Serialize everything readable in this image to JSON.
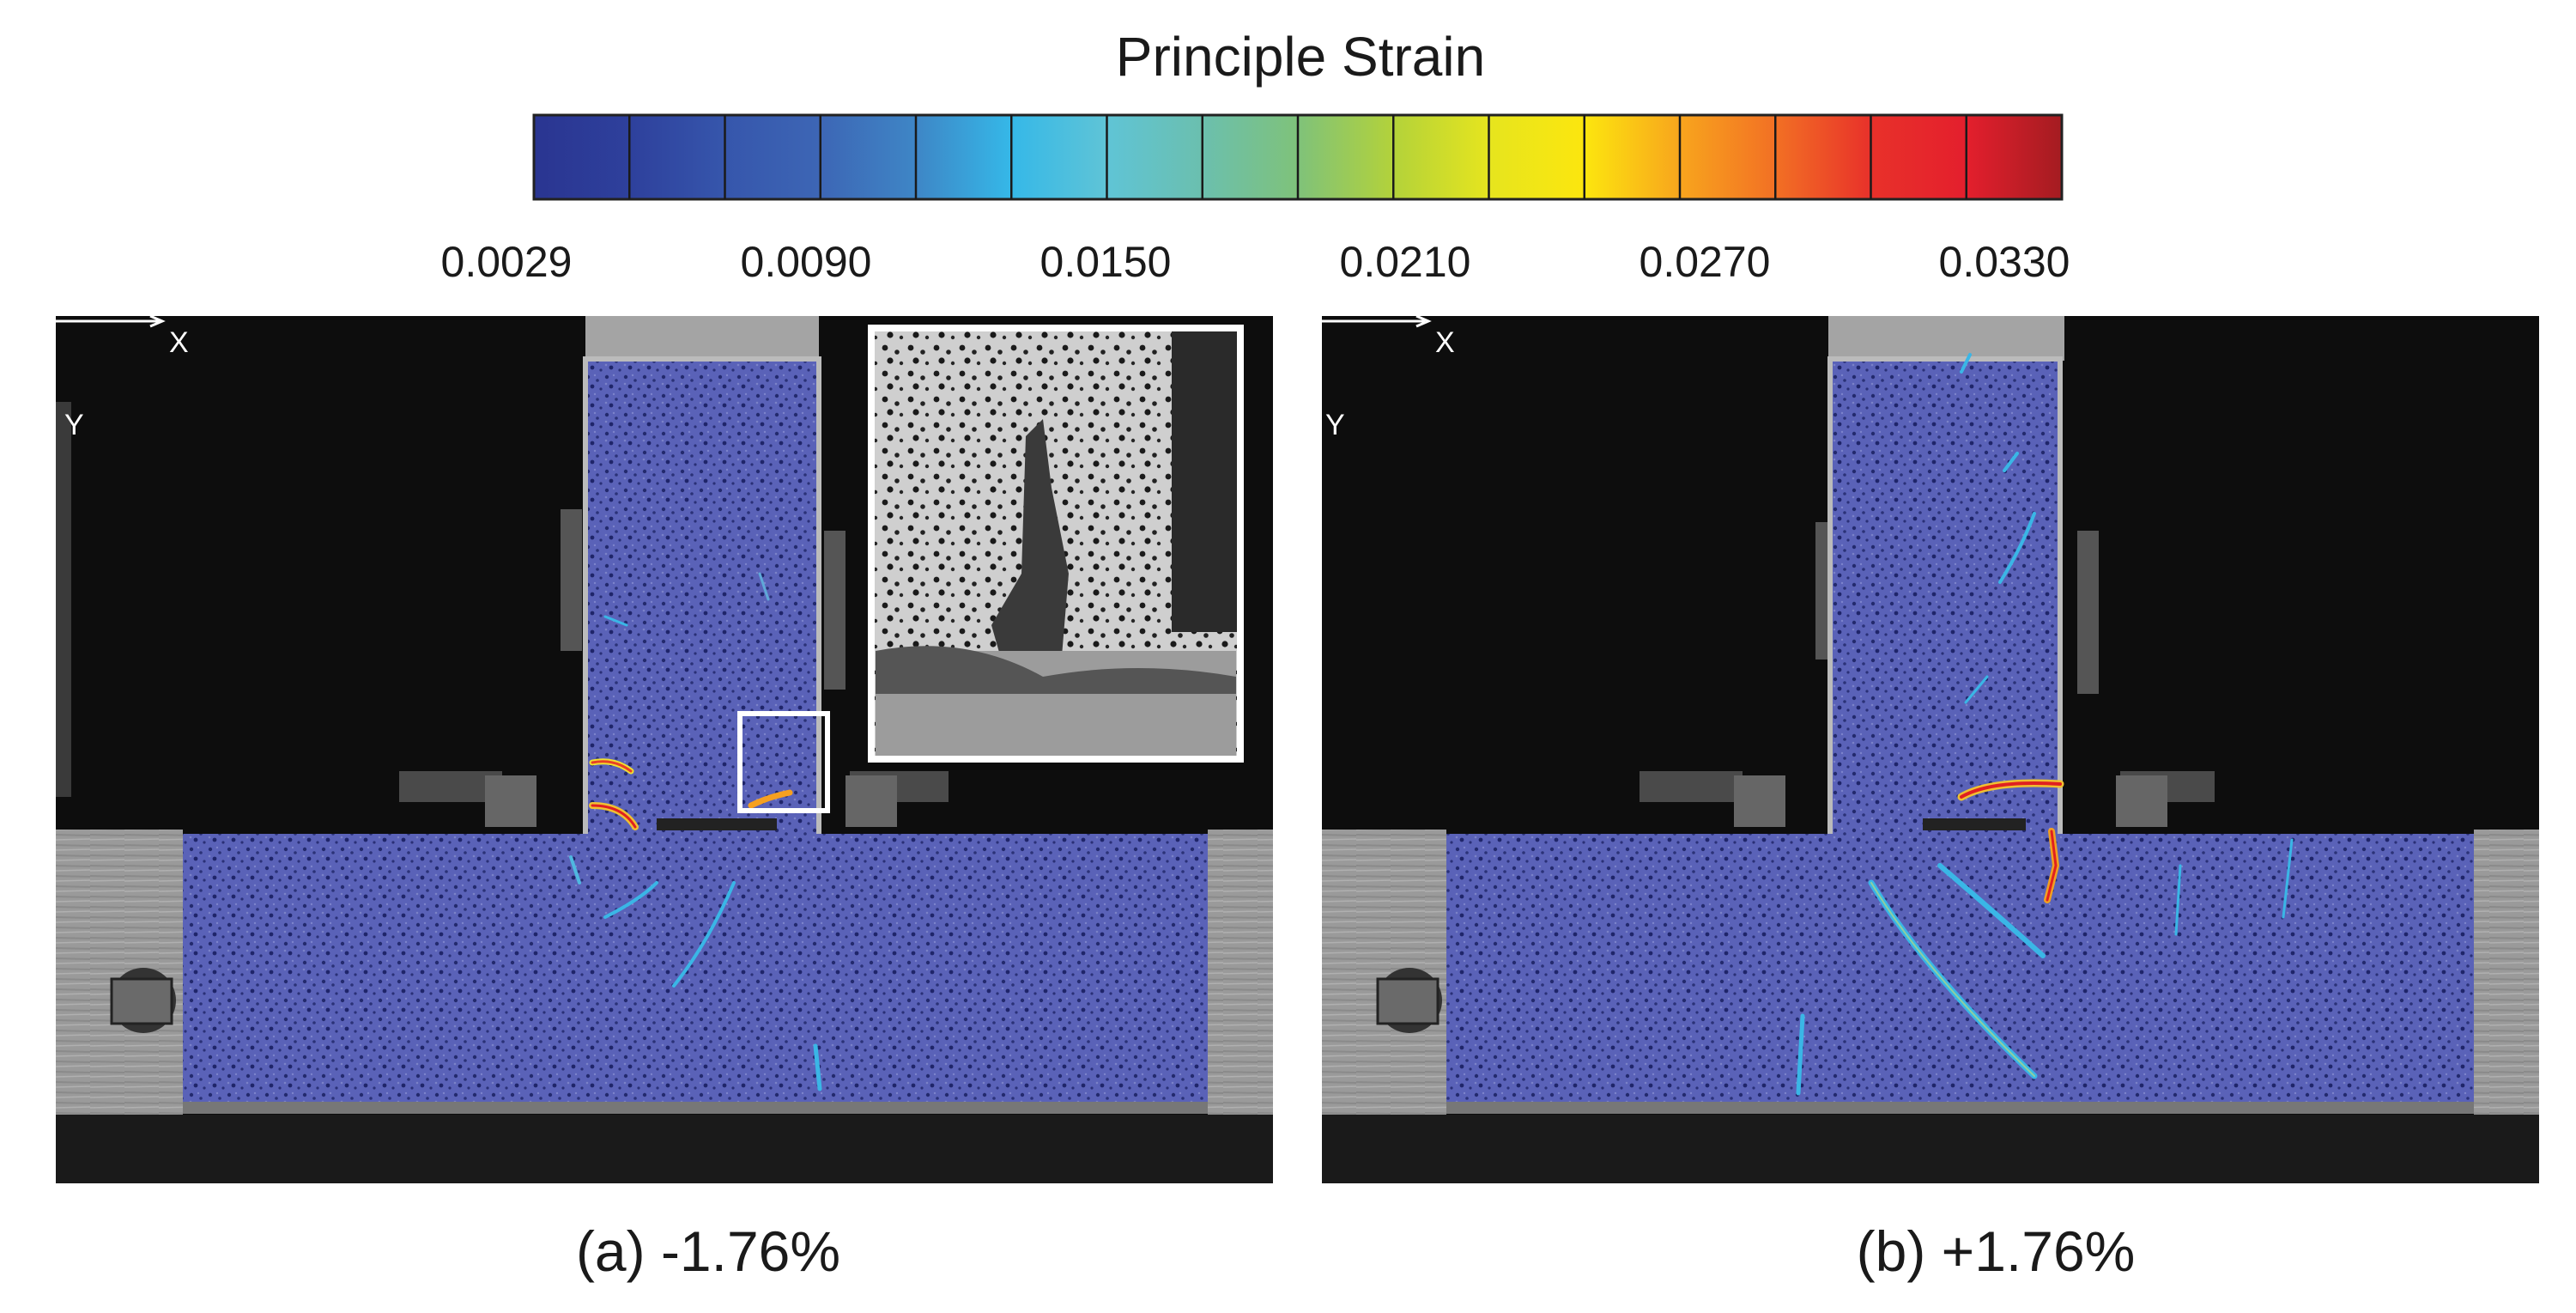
{
  "colorbar": {
    "title": "Principle Strain",
    "tick_labels": [
      "0.0029",
      "0.0090",
      "0.0150",
      "0.0210",
      "0.0270",
      "0.0330"
    ],
    "segments": 16,
    "colors": [
      "#2a3591",
      "#2e409c",
      "#3656ac",
      "#3d66b5",
      "#3e86c6",
      "#35b8e8",
      "#5fc4d6",
      "#6bbfae",
      "#7fc27a",
      "#b3d23a",
      "#e6e51e",
      "#fce60e",
      "#f8a51d",
      "#f27024",
      "#e8312a",
      "#e41f2d",
      "#a41c21"
    ]
  },
  "panels": [
    {
      "caption": "(a) -1.76%",
      "axis_x": "X",
      "axis_y": "Y"
    },
    {
      "caption": "(b) +1.76%",
      "axis_x": "X",
      "axis_y": "Y"
    }
  ]
}
